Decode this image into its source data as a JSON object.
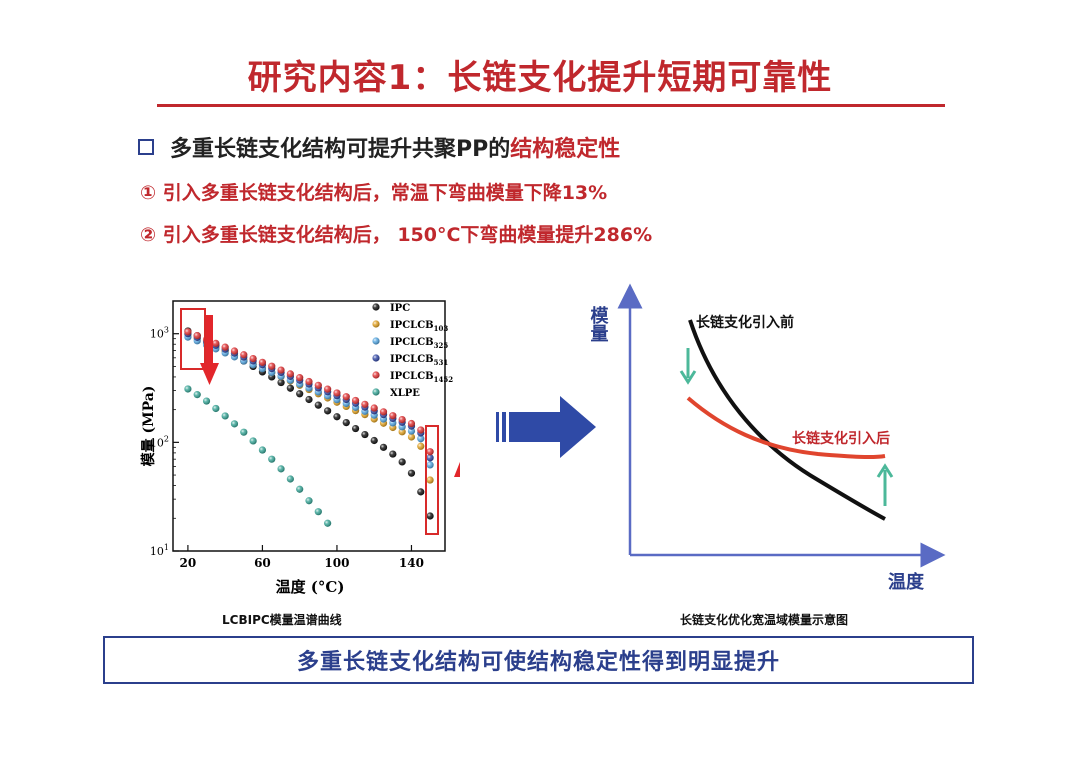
{
  "slide": {
    "title": "研究内容1：长链支化提升短期可靠性",
    "bullet_prefix": "多重长链支化结构可提升共聚PP的",
    "bullet_highlight": "结构稳定性",
    "points": [
      "① 引入多重长链支化结构后，常温下弯曲模量下降13%",
      "② 引入多重长链支化结构后， 150°C下弯曲模量提升286%"
    ],
    "caption_left": "LCBIPC模量温谱曲线",
    "caption_right": "长链支化优化宽温域模量示意图",
    "conclusion": "多重长链支化结构可使结构稳定性得到明显提升",
    "colors": {
      "accent_red": "#c0282d",
      "accent_blue": "#2b3f8c",
      "arrow_blue": "#2f4aa6",
      "teal_arrow": "#4cb89a"
    }
  },
  "chart_data": [
    {
      "type": "scatter",
      "title": "",
      "xlabel": "温度 (°C)",
      "ylabel": "模量 (MPa)",
      "xlim": [
        12,
        158
      ],
      "ylim": [
        10,
        2000
      ],
      "y_scale": "log",
      "x_ticks": [
        20,
        60,
        100,
        140
      ],
      "y_ticks": [
        {
          "value": 10,
          "base": "10",
          "exp": "1"
        },
        {
          "value": 100,
          "base": "10",
          "exp": "2"
        },
        {
          "value": 1000,
          "base": "10",
          "exp": "3"
        }
      ],
      "legend_position": "top-right",
      "series": [
        {
          "name": "IPC",
          "sub": "",
          "color": "#1a1a1a",
          "x": [
            20,
            25,
            30,
            35,
            40,
            45,
            50,
            55,
            60,
            65,
            70,
            75,
            80,
            85,
            90,
            95,
            100,
            105,
            110,
            115,
            120,
            125,
            130,
            135,
            140,
            145,
            150
          ],
          "y": [
            1060,
            960,
            860,
            780,
            700,
            630,
            560,
            500,
            445,
            400,
            355,
            315,
            280,
            248,
            220,
            195,
            172,
            152,
            134,
            118,
            104,
            90,
            78,
            66,
            52,
            35,
            21
          ]
        },
        {
          "name": "IPCLCB",
          "sub": "103",
          "color": "#e0a32a",
          "x": [
            20,
            25,
            30,
            35,
            40,
            45,
            50,
            55,
            60,
            65,
            70,
            75,
            80,
            85,
            90,
            95,
            100,
            105,
            110,
            115,
            120,
            125,
            130,
            135,
            140,
            145,
            150
          ],
          "y": [
            980,
            900,
            820,
            750,
            690,
            630,
            575,
            525,
            480,
            440,
            402,
            367,
            335,
            306,
            280,
            256,
            234,
            214,
            196,
            180,
            164,
            150,
            137,
            125,
            112,
            92,
            45
          ]
        },
        {
          "name": "IPCLCB",
          "sub": "325",
          "color": "#5aa8e0",
          "x": [
            20,
            25,
            30,
            35,
            40,
            45,
            50,
            55,
            60,
            65,
            70,
            75,
            80,
            85,
            90,
            95,
            100,
            105,
            110,
            115,
            120,
            125,
            130,
            135,
            140,
            145,
            150
          ],
          "y": [
            930,
            860,
            790,
            725,
            665,
            612,
            562,
            518,
            477,
            440,
            405,
            373,
            343,
            316,
            291,
            268,
            247,
            228,
            210,
            193,
            178,
            164,
            151,
            139,
            127,
            108,
            62
          ]
        },
        {
          "name": "IPCLCB",
          "sub": "531",
          "color": "#3a4fa8",
          "x": [
            20,
            25,
            30,
            35,
            40,
            45,
            50,
            55,
            60,
            65,
            70,
            75,
            80,
            85,
            90,
            95,
            100,
            105,
            110,
            115,
            120,
            125,
            130,
            135,
            140,
            145,
            150
          ],
          "y": [
            1000,
            925,
            850,
            782,
            720,
            663,
            610,
            562,
            518,
            477,
            440,
            405,
            373,
            344,
            317,
            292,
            269,
            248,
            229,
            211,
            195,
            180,
            166,
            153,
            141,
            122,
            72
          ]
        },
        {
          "name": "IPCLCB",
          "sub": "1452",
          "color": "#e0393b",
          "x": [
            20,
            25,
            30,
            35,
            40,
            45,
            50,
            55,
            60,
            65,
            70,
            75,
            80,
            85,
            90,
            95,
            100,
            105,
            110,
            115,
            120,
            125,
            130,
            135,
            140,
            145,
            150
          ],
          "y": [
            1040,
            960,
            885,
            815,
            752,
            693,
            640,
            590,
            545,
            502,
            463,
            427,
            394,
            363,
            335,
            309,
            285,
            263,
            243,
            224,
            207,
            191,
            176,
            162,
            149,
            130,
            82
          ]
        },
        {
          "name": "XLPE",
          "sub": "",
          "color": "#3fa89a",
          "x": [
            20,
            25,
            30,
            35,
            40,
            45,
            50,
            55,
            60,
            65,
            70,
            75,
            80,
            85,
            90,
            95
          ],
          "y": [
            310,
            275,
            240,
            205,
            175,
            148,
            124,
            103,
            85,
            70,
            57,
            46,
            37,
            29,
            23,
            18
          ]
        }
      ]
    },
    {
      "type": "line",
      "title": "",
      "xlabel": "温度",
      "ylabel": "模量",
      "series": [
        {
          "name": "长链支化引入前",
          "color": "#111111"
        },
        {
          "name": "长链支化引入后",
          "color": "#e0452e"
        }
      ]
    }
  ]
}
